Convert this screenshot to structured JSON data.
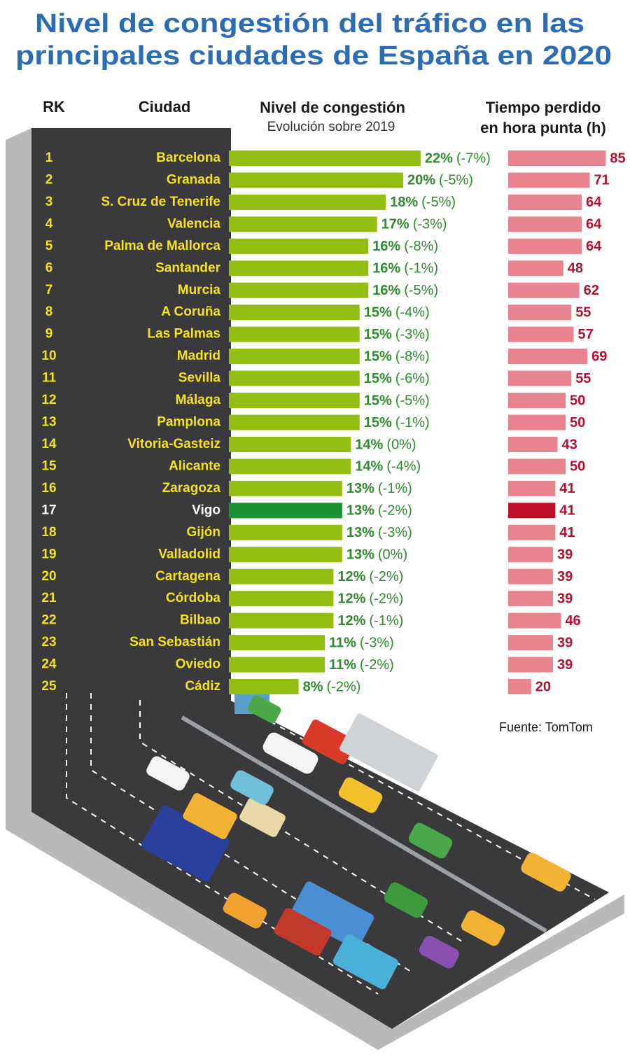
{
  "title": [
    "Nivel de congestión del tráfico en las",
    "principales ciudades de España en 2020"
  ],
  "headers": {
    "rank": "RK",
    "city": "Ciudad",
    "congestion": "Nivel de congestión",
    "congestion_sub": "Evolución sobre 2019",
    "time": [
      "Tiempo perdido",
      "en hora punta (h)"
    ]
  },
  "colors": {
    "congestion": "#93bd10",
    "congestion_highlight": "#1b9230",
    "hours": "#e8838f",
    "hours_highlight": "#c00d2a"
  },
  "rows": [
    {
      "rank": 1,
      "city": "Barcelona",
      "congestion": 22,
      "congestion_label": "22%",
      "change": -7,
      "change_label": "(-7%)",
      "hours": 85
    },
    {
      "rank": 2,
      "city": "Granada",
      "congestion": 20,
      "congestion_label": "20%",
      "change": -5,
      "change_label": "(-5%)",
      "hours": 71
    },
    {
      "rank": 3,
      "city": "S. Cruz de Tenerife",
      "congestion": 18,
      "congestion_label": "18%",
      "change": -5,
      "change_label": "(-5%)",
      "hours": 64
    },
    {
      "rank": 4,
      "city": "Valencia",
      "congestion": 17,
      "congestion_label": "17%",
      "change": -3,
      "change_label": "(-3%)",
      "hours": 64
    },
    {
      "rank": 5,
      "city": "Palma de Mallorca",
      "congestion": 16,
      "congestion_label": "16%",
      "change": -8,
      "change_label": "(-8%)",
      "hours": 64
    },
    {
      "rank": 6,
      "city": "Santander",
      "congestion": 16,
      "congestion_label": "16%",
      "change": -1,
      "change_label": "(-1%)",
      "hours": 48
    },
    {
      "rank": 7,
      "city": "Murcia",
      "congestion": 16,
      "congestion_label": "16%",
      "change": -5,
      "change_label": "(-5%)",
      "hours": 62
    },
    {
      "rank": 8,
      "city": "A Coruña",
      "congestion": 15,
      "congestion_label": "15%",
      "change": -4,
      "change_label": "(-4%)",
      "hours": 55
    },
    {
      "rank": 9,
      "city": "Las Palmas",
      "congestion": 15,
      "congestion_label": "15%",
      "change": -3,
      "change_label": "(-3%)",
      "hours": 57
    },
    {
      "rank": 10,
      "city": "Madrid",
      "congestion": 15,
      "congestion_label": "15%",
      "change": -8,
      "change_label": "(-8%)",
      "hours": 69
    },
    {
      "rank": 11,
      "city": "Sevilla",
      "congestion": 15,
      "congestion_label": "15%",
      "change": -6,
      "change_label": "(-6%)",
      "hours": 55
    },
    {
      "rank": 12,
      "city": "Málaga",
      "congestion": 15,
      "congestion_label": "15%",
      "change": -5,
      "change_label": "(-5%)",
      "hours": 50
    },
    {
      "rank": 13,
      "city": "Pamplona",
      "congestion": 15,
      "congestion_label": "15%",
      "change": -1,
      "change_label": "(-1%)",
      "hours": 50
    },
    {
      "rank": 14,
      "city": "Vitoria-Gasteiz",
      "congestion": 14,
      "congestion_label": "14%",
      "change": 0,
      "change_label": "(0%)",
      "hours": 43
    },
    {
      "rank": 15,
      "city": "Alicante",
      "congestion": 14,
      "congestion_label": "14%",
      "change": -4,
      "change_label": "(-4%)",
      "hours": 50
    },
    {
      "rank": 16,
      "city": "Zaragoza",
      "congestion": 13,
      "congestion_label": "13%",
      "change": -1,
      "change_label": "(-1%)",
      "hours": 41
    },
    {
      "rank": 17,
      "city": "Vigo",
      "congestion": 13,
      "congestion_label": "13%",
      "change": -2,
      "change_label": "(-2%)",
      "hours": 41,
      "highlight": true
    },
    {
      "rank": 18,
      "city": "Gijón",
      "congestion": 13,
      "congestion_label": "13%",
      "change": -3,
      "change_label": "(-3%)",
      "hours": 41
    },
    {
      "rank": 19,
      "city": "Valladolid",
      "congestion": 13,
      "congestion_label": "13%",
      "change": 0,
      "change_label": "(0%)",
      "hours": 39
    },
    {
      "rank": 20,
      "city": "Cartagena",
      "congestion": 12,
      "congestion_label": "12%",
      "change": -2,
      "change_label": "(-2%)",
      "hours": 39
    },
    {
      "rank": 21,
      "city": "Córdoba",
      "congestion": 12,
      "congestion_label": "12%",
      "change": -2,
      "change_label": "(-2%)",
      "hours": 39
    },
    {
      "rank": 22,
      "city": "Bilbao",
      "congestion": 12,
      "congestion_label": "12%",
      "change": -1,
      "change_label": "(-1%)",
      "hours": 46
    },
    {
      "rank": 23,
      "city": "San Sebastián",
      "congestion": 11,
      "congestion_label": "11%",
      "change": -3,
      "change_label": "(-3%)",
      "hours": 39
    },
    {
      "rank": 24,
      "city": "Oviedo",
      "congestion": 11,
      "congestion_label": "11%",
      "change": -2,
      "change_label": "(-2%)",
      "hours": 39
    },
    {
      "rank": 25,
      "city": "Cádiz",
      "congestion": 8,
      "congestion_label": "8%",
      "change": -2,
      "change_label": "(-2%)",
      "hours": 20
    }
  ],
  "source": "Fuente: TomTom"
}
